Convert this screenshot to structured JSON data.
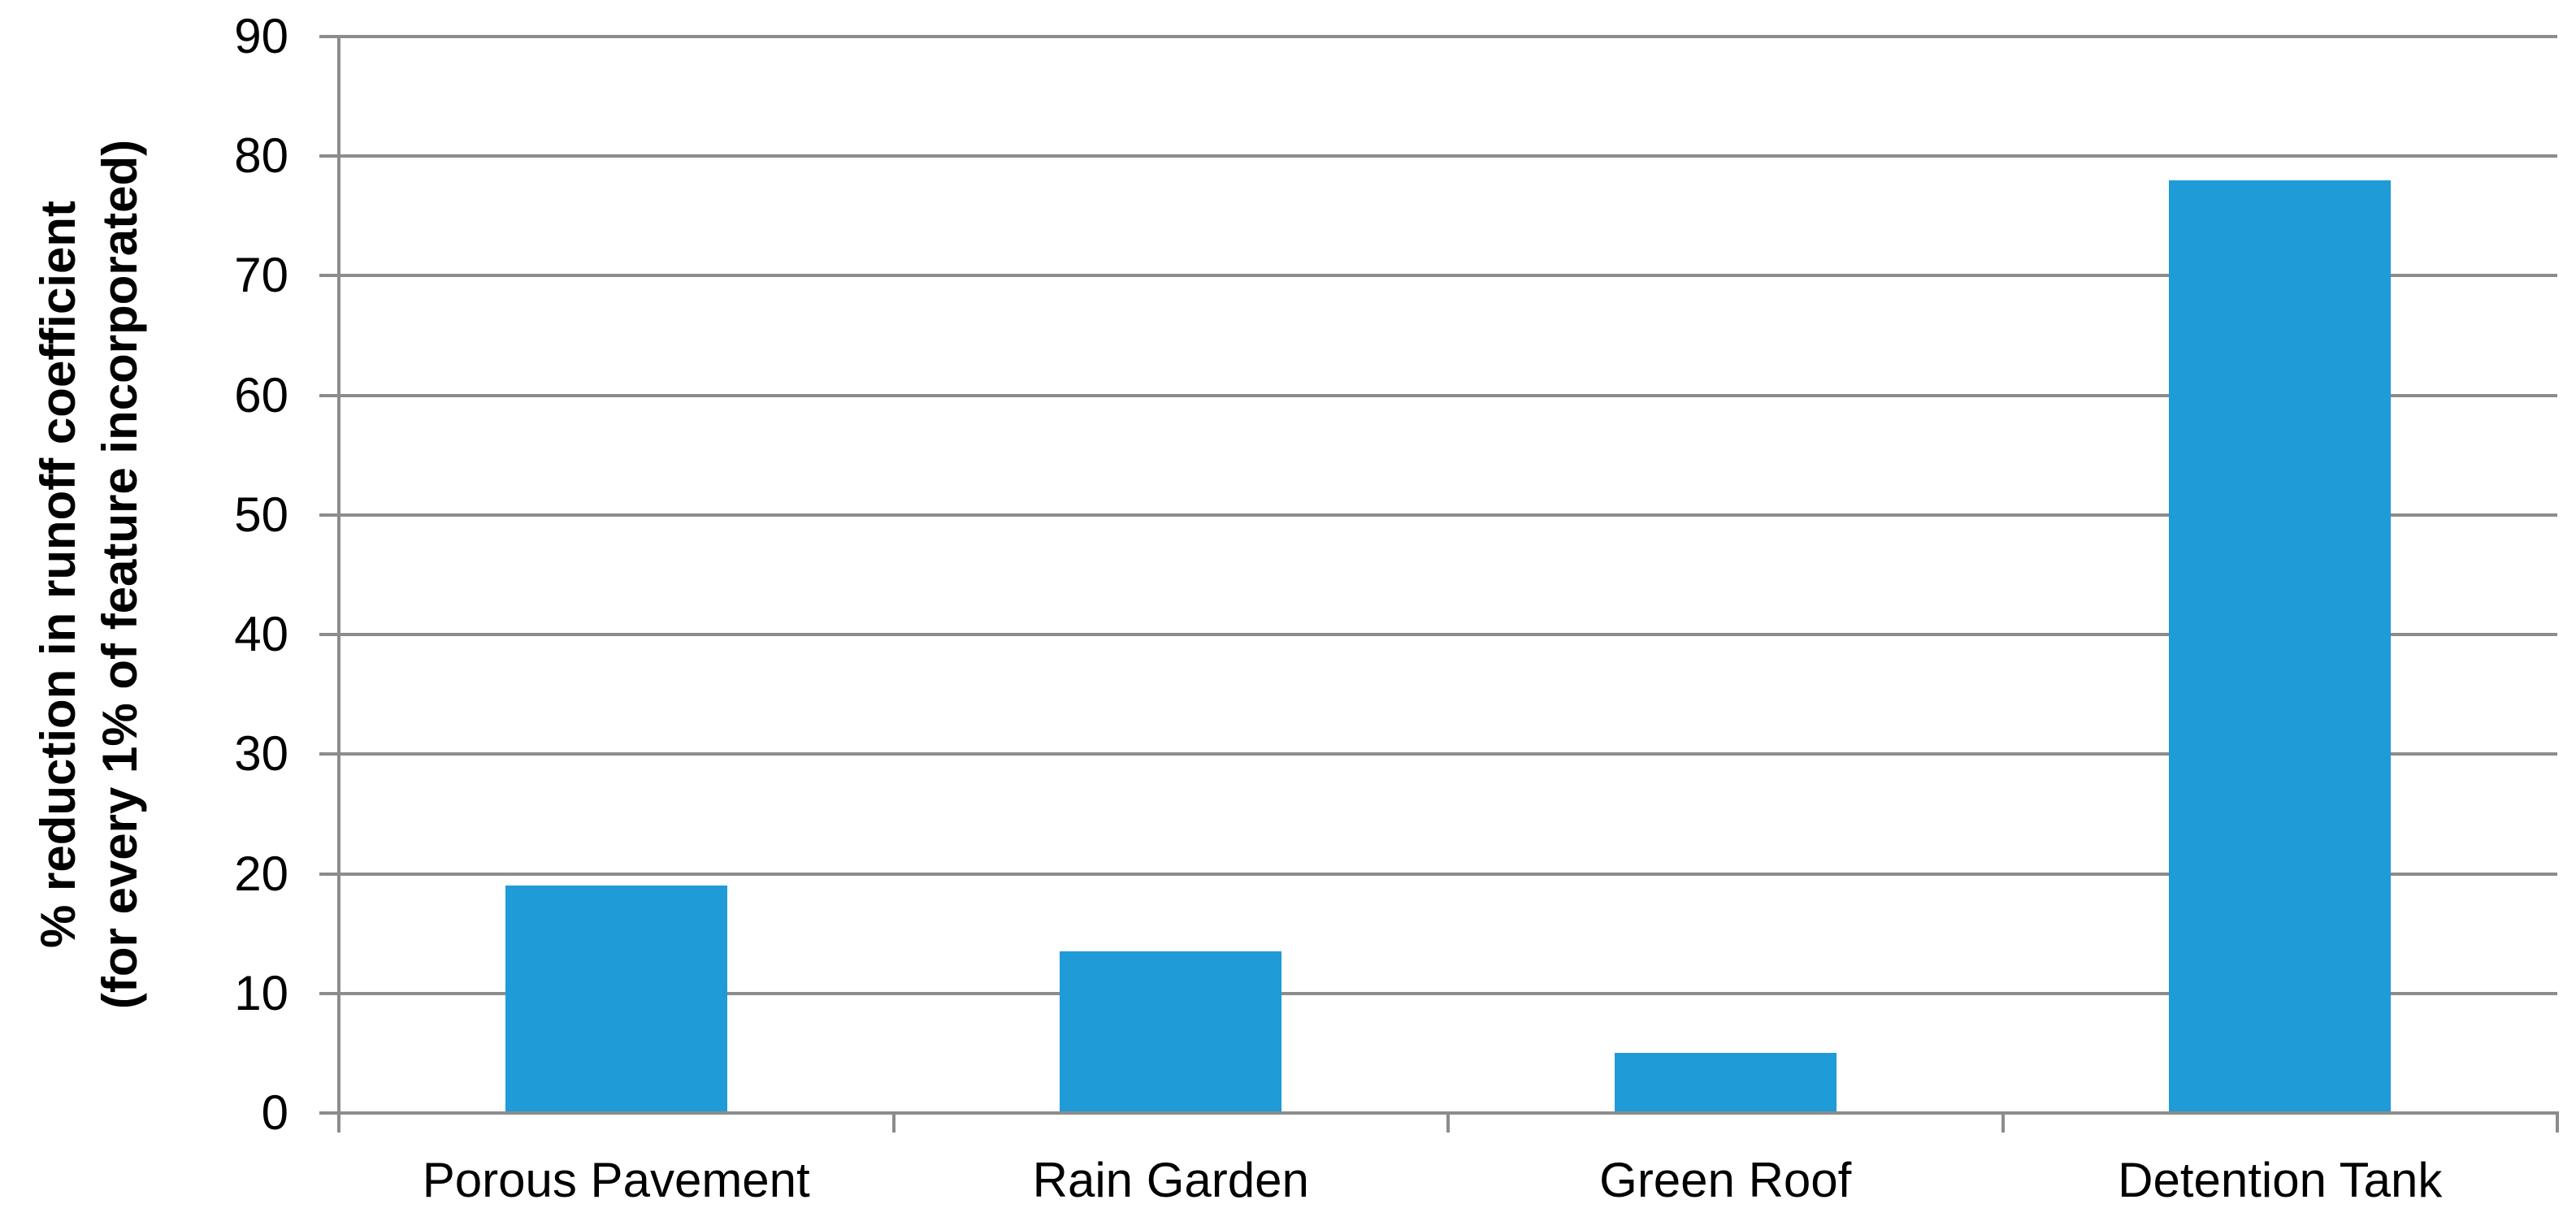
{
  "chart_data": {
    "type": "bar",
    "title": "",
    "categories": [
      "Porous Pavement",
      "Rain Garden",
      "Green Roof",
      "Detention Tank"
    ],
    "values": [
      19,
      13.5,
      5,
      78
    ],
    "series_name": "",
    "ylabel_line1": "% reduction in runoff coefficient",
    "ylabel_line2": "(for every 1% of feature incorporated)",
    "xlabel": "",
    "ylim": [
      0,
      90
    ],
    "ytick_interval": 10,
    "ytick_labels": [
      "90",
      "80",
      "70",
      "60",
      "50",
      "40",
      "30",
      "20",
      "10",
      "0"
    ],
    "grid": "horizontal",
    "legend_position": "none",
    "bar_color": "#1F9BD7",
    "gridline_color": "#8C8C8C",
    "axis_color": "#8C8C8C",
    "text_color": "#000000"
  }
}
